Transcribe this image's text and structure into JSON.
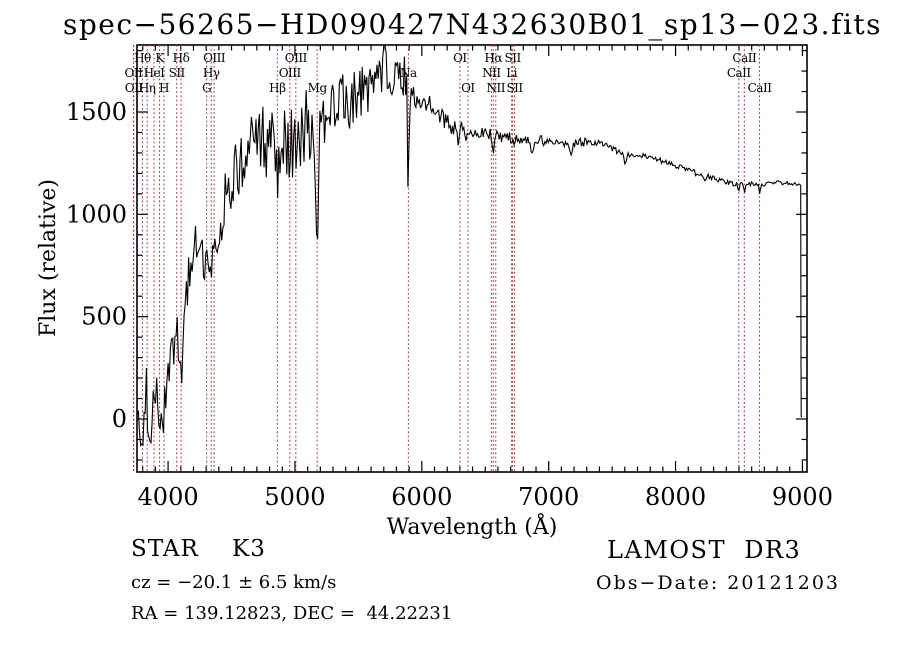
{
  "title": "spec−56265−HD090427N432630B01_sp13−023.fits",
  "colors": {
    "background": "#ffffff",
    "spectrum": "#000000",
    "frame": "#000000",
    "line_marker": "#a23535",
    "text": "#000000"
  },
  "footer": {
    "class_label": "STAR    K3",
    "cz": "cz = −20.1 ± 6.5 km/s",
    "radec": "RA = 139.12823, DEC =  44.22231",
    "survey": "LAMOST  DR3",
    "obs_date": "Obs−Date: 20121203"
  },
  "chart_data": {
    "type": "line",
    "title": "spec−56265−HD090427N432630B01_sp13−023.fits",
    "xlabel": "Wavelength (Å)",
    "ylabel": "Flux (relative)",
    "xlim": [
      3755,
      9036
    ],
    "ylim": [
      -259,
      1827
    ],
    "xticks": [
      4000,
      5000,
      6000,
      7000,
      8000,
      9000
    ],
    "yticks": [
      0,
      500,
      1000,
      1500
    ],
    "x_minor_step": 100,
    "y_minor_step": 100,
    "grid": false,
    "legend": "none",
    "spectral_lines": [
      {
        "label": "OII",
        "wavelength": 3727,
        "row": 2
      },
      {
        "label": "OII",
        "wavelength": 3729,
        "row": 3
      },
      {
        "label": "Hθ",
        "wavelength": 3798,
        "row": 1
      },
      {
        "label": "Hη",
        "wavelength": 3835,
        "row": 3
      },
      {
        "label": "HeI",
        "wavelength": 3889,
        "row": 2
      },
      {
        "label": "K",
        "wavelength": 3933,
        "row": 1
      },
      {
        "label": "H",
        "wavelength": 3968,
        "row": 3
      },
      {
        "label": "SII",
        "wavelength": 4068,
        "row": 2
      },
      {
        "label": "Hδ",
        "wavelength": 4102,
        "row": 1
      },
      {
        "label": "G",
        "wavelength": 4304,
        "row": 3
      },
      {
        "label": "Hγ",
        "wavelength": 4340,
        "row": 2
      },
      {
        "label": "OIII",
        "wavelength": 4363,
        "row": 1
      },
      {
        "label": "Hβ",
        "wavelength": 4861,
        "row": 3
      },
      {
        "label": "OIII",
        "wavelength": 4959,
        "row": 2
      },
      {
        "label": "OIII",
        "wavelength": 5007,
        "row": 1
      },
      {
        "label": "Mg",
        "wavelength": 5175,
        "row": 3
      },
      {
        "label": "Na",
        "wavelength": 5894,
        "row": 2
      },
      {
        "label": "OI",
        "wavelength": 6300,
        "row": 1
      },
      {
        "label": "OI",
        "wavelength": 6363,
        "row": 3
      },
      {
        "label": "NII",
        "wavelength": 6548,
        "row": 2
      },
      {
        "label": "Hα",
        "wavelength": 6563,
        "row": 1
      },
      {
        "label": "NII",
        "wavelength": 6583,
        "row": 3
      },
      {
        "label": "Li",
        "wavelength": 6708,
        "row": 2
      },
      {
        "label": "SII",
        "wavelength": 6716,
        "row": 1
      },
      {
        "label": "SII",
        "wavelength": 6731,
        "row": 3
      },
      {
        "label": "CaII",
        "wavelength": 8498,
        "row": 2
      },
      {
        "label": "CaII",
        "wavelength": 8542,
        "row": 1
      },
      {
        "label": "CaII",
        "wavelength": 8662,
        "row": 3
      }
    ],
    "envelope": [
      [
        3757,
        20
      ],
      [
        3770,
        60
      ],
      [
        3785,
        -90
      ],
      [
        3800,
        -120
      ],
      [
        3815,
        30
      ],
      [
        3830,
        130
      ],
      [
        3845,
        -30
      ],
      [
        3860,
        -130
      ],
      [
        3875,
        50
      ],
      [
        3890,
        170
      ],
      [
        3905,
        110
      ],
      [
        3920,
        150
      ],
      [
        3935,
        -20
      ],
      [
        3950,
        90
      ],
      [
        3968,
        40
      ],
      [
        3985,
        150
      ],
      [
        4000,
        200
      ],
      [
        4020,
        280
      ],
      [
        4040,
        330
      ],
      [
        4060,
        400
      ],
      [
        4080,
        380
      ],
      [
        4102,
        330
      ],
      [
        4125,
        430
      ],
      [
        4150,
        600
      ],
      [
        4175,
        790
      ],
      [
        4200,
        860
      ],
      [
        4225,
        820
      ],
      [
        4250,
        830
      ],
      [
        4275,
        800
      ],
      [
        4304,
        770
      ],
      [
        4325,
        810
      ],
      [
        4340,
        790
      ],
      [
        4360,
        840
      ],
      [
        4385,
        880
      ],
      [
        4410,
        950
      ],
      [
        4435,
        1020
      ],
      [
        4460,
        1080
      ],
      [
        4485,
        1130
      ],
      [
        4510,
        1180
      ],
      [
        4535,
        1220
      ],
      [
        4560,
        1250
      ],
      [
        4585,
        1270
      ],
      [
        4610,
        1300
      ],
      [
        4640,
        1330
      ],
      [
        4670,
        1360
      ],
      [
        4700,
        1390
      ],
      [
        4730,
        1370
      ],
      [
        4760,
        1380
      ],
      [
        4790,
        1360
      ],
      [
        4820,
        1380
      ],
      [
        4861,
        1300
      ],
      [
        4890,
        1380
      ],
      [
        4920,
        1360
      ],
      [
        4950,
        1340
      ],
      [
        4980,
        1360
      ],
      [
        5007,
        1320
      ],
      [
        5040,
        1380
      ],
      [
        5070,
        1420
      ],
      [
        5100,
        1440
      ],
      [
        5130,
        1430
      ],
      [
        5160,
        1380
      ],
      [
        5190,
        1390
      ],
      [
        5215,
        1440
      ],
      [
        5240,
        1480
      ],
      [
        5270,
        1500
      ],
      [
        5300,
        1510
      ],
      [
        5330,
        1520
      ],
      [
        5360,
        1540
      ],
      [
        5400,
        1560
      ],
      [
        5450,
        1580
      ],
      [
        5500,
        1600
      ],
      [
        5550,
        1620
      ],
      [
        5600,
        1640
      ],
      [
        5650,
        1660
      ],
      [
        5700,
        1670
      ],
      [
        5750,
        1680
      ],
      [
        5800,
        1700
      ],
      [
        5840,
        1700
      ],
      [
        5880,
        1690
      ],
      [
        5910,
        1600
      ],
      [
        5940,
        1570
      ],
      [
        5980,
        1560
      ],
      [
        6020,
        1550
      ],
      [
        6060,
        1530
      ],
      [
        6100,
        1510
      ],
      [
        6150,
        1490
      ],
      [
        6200,
        1460
      ],
      [
        6250,
        1440
      ],
      [
        6300,
        1420
      ],
      [
        6350,
        1410
      ],
      [
        6400,
        1400
      ],
      [
        6450,
        1400
      ],
      [
        6500,
        1395
      ],
      [
        6540,
        1390
      ],
      [
        6600,
        1380
      ],
      [
        6650,
        1375
      ],
      [
        6700,
        1370
      ],
      [
        6750,
        1365
      ],
      [
        6800,
        1360
      ],
      [
        6900,
        1358
      ],
      [
        7000,
        1355
      ],
      [
        7100,
        1350
      ],
      [
        7200,
        1348
      ],
      [
        7300,
        1350
      ],
      [
        7400,
        1350
      ],
      [
        7500,
        1320
      ],
      [
        7580,
        1298
      ],
      [
        7650,
        1292
      ],
      [
        7750,
        1285
      ],
      [
        7850,
        1268
      ],
      [
        7950,
        1248
      ],
      [
        8050,
        1228
      ],
      [
        8150,
        1210
      ],
      [
        8250,
        1188
      ],
      [
        8350,
        1165
      ],
      [
        8430,
        1152
      ],
      [
        8470,
        1148
      ],
      [
        8530,
        1148
      ],
      [
        8600,
        1146
      ],
      [
        8640,
        1145
      ],
      [
        8700,
        1145
      ],
      [
        8740,
        1152
      ],
      [
        8780,
        1160
      ],
      [
        8820,
        1152
      ],
      [
        8870,
        1152
      ],
      [
        8920,
        1150
      ],
      [
        8960,
        1148
      ],
      [
        8988,
        1142
      ]
    ],
    "end_drop": [
      [
        8988,
        1142
      ],
      [
        8989,
        300
      ],
      [
        8990,
        12
      ],
      [
        8994,
        8
      ]
    ],
    "absorption_features": [
      [
        4861,
        80,
        8
      ],
      [
        5175,
        640,
        9
      ],
      [
        5893,
        520,
        7
      ],
      [
        6280,
        60,
        10
      ],
      [
        6563,
        75,
        6
      ],
      [
        6870,
        55,
        9
      ],
      [
        7180,
        25,
        12
      ],
      [
        7605,
        45,
        10
      ],
      [
        8230,
        25,
        10
      ],
      [
        8498,
        38,
        5
      ],
      [
        8542,
        42,
        5
      ],
      [
        8662,
        42,
        5
      ]
    ],
    "render_hints": {
      "noise_regions": [
        [
          3755,
          3960,
          115
        ],
        [
          3960,
          4140,
          105
        ],
        [
          4140,
          4450,
          115
        ],
        [
          4450,
          4750,
          150
        ],
        [
          4750,
          5130,
          180
        ],
        [
          5130,
          5650,
          140
        ],
        [
          5650,
          5900,
          115
        ],
        [
          5900,
          6320,
          55
        ],
        [
          6320,
          6760,
          30
        ],
        [
          6760,
          7300,
          20
        ],
        [
          7300,
          7900,
          14
        ],
        [
          7900,
          8500,
          11
        ],
        [
          8500,
          8990,
          9
        ]
      ],
      "noise_seed": 20121203,
      "sample_step_angstrom": 9
    }
  }
}
